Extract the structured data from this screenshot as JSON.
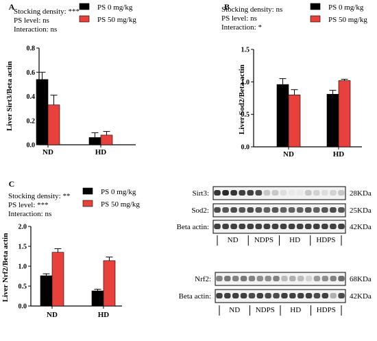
{
  "colors": {
    "ps0": "#000000",
    "ps50": "#e8403a",
    "axis": "#000000",
    "blot_bg": "#f2f2f2"
  },
  "chart_data": [
    {
      "type": "bar",
      "panel_label": "A",
      "stats": [
        "Stocking density: ***",
        "PS level: ns",
        "Interaction: ns"
      ],
      "legend": [
        {
          "name": "PS 0 mg/kg",
          "color": "#000000"
        },
        {
          "name": "PS 50 mg/kg",
          "color": "#e8403a"
        }
      ],
      "categories": [
        "ND",
        "HD"
      ],
      "series": [
        {
          "name": "PS 0 mg/kg",
          "values": [
            0.54,
            0.06
          ],
          "errors": [
            0.06,
            0.04
          ]
        },
        {
          "name": "PS 50 mg/kg",
          "values": [
            0.33,
            0.08
          ],
          "errors": [
            0.08,
            0.03
          ]
        }
      ],
      "ylabel": "Liver Sirt3/Beta actin",
      "ylim": [
        0,
        0.8
      ],
      "yticks": [
        0.0,
        0.2,
        0.4,
        0.6,
        0.8
      ],
      "ytick_labels": [
        "0.0",
        "0.2",
        "0.4",
        "0.6",
        "0.8"
      ]
    },
    {
      "type": "bar",
      "panel_label": "B",
      "stats": [
        "Stocking density: ns",
        "PS level: ns",
        "Interaction: *"
      ],
      "legend": [
        {
          "name": "PS 0 mg/kg",
          "color": "#000000"
        },
        {
          "name": "PS 50 mg/kg",
          "color": "#e8403a"
        }
      ],
      "categories": [
        "ND",
        "HD"
      ],
      "series": [
        {
          "name": "PS 0 mg/kg",
          "values": [
            0.96,
            0.81
          ],
          "errors": [
            0.09,
            0.06
          ]
        },
        {
          "name": "PS 50 mg/kg",
          "values": [
            0.8,
            1.02
          ],
          "errors": [
            0.08,
            0.02
          ]
        }
      ],
      "ylabel": "Liver Sod2/Beta actin",
      "ylim": [
        0,
        1.5
      ],
      "yticks": [
        0.0,
        0.5,
        1.0,
        1.5
      ],
      "ytick_labels": [
        "0.0",
        "0.5",
        "1.0",
        "1.5"
      ]
    },
    {
      "type": "bar",
      "panel_label": "C",
      "stats": [
        "Stocking density: **",
        "PS level: ***",
        "Interaction: ns"
      ],
      "legend": [
        {
          "name": "PS 0 mg/kg",
          "color": "#000000"
        },
        {
          "name": "PS 50 mg/kg",
          "color": "#e8403a"
        }
      ],
      "categories": [
        "ND",
        "HD"
      ],
      "series": [
        {
          "name": "PS 0 mg/kg",
          "values": [
            0.76,
            0.38
          ],
          "errors": [
            0.05,
            0.04
          ]
        },
        {
          "name": "PS 50 mg/kg",
          "values": [
            1.35,
            1.14
          ],
          "errors": [
            0.09,
            0.09
          ]
        }
      ],
      "ylabel": "Liver Nrf2/Beta actin",
      "ylim": [
        0,
        2.0
      ],
      "yticks": [
        0.0,
        0.5,
        1.0,
        1.5,
        2.0
      ],
      "ytick_labels": [
        "0.0",
        "0.5",
        "1.0",
        "1.5",
        "2.0"
      ]
    }
  ],
  "blots": [
    {
      "rows": [
        {
          "label": "Sirt3:",
          "size": "28KDa",
          "intensities": [
            0.9,
            0.95,
            0.9,
            0.85,
            0.85,
            0.8,
            0.25,
            0.25,
            0.15,
            0.1,
            0.1,
            0.25,
            0.2,
            0.15,
            0.2,
            0.25
          ]
        },
        {
          "label": "Sod2:",
          "size": "25KDa",
          "intensities": [
            0.8,
            0.75,
            0.8,
            0.75,
            0.8,
            0.75,
            0.7,
            0.75,
            0.7,
            0.7,
            0.7,
            0.75,
            0.7,
            0.75,
            0.8,
            0.75
          ]
        },
        {
          "label": "Beta actin:",
          "size": "42KDa",
          "intensities": [
            0.85,
            0.85,
            0.85,
            0.85,
            0.85,
            0.85,
            0.85,
            0.85,
            0.85,
            0.85,
            0.85,
            0.85,
            0.85,
            0.85,
            0.85,
            0.85
          ]
        }
      ],
      "groups": [
        "ND",
        "NDPS",
        "HD",
        "HDPS"
      ]
    },
    {
      "rows": [
        {
          "label": "Nrf2:",
          "size": "68KDa",
          "intensities": [
            0.55,
            0.6,
            0.55,
            0.6,
            0.55,
            0.5,
            0.5,
            0.55,
            0.3,
            0.35,
            0.3,
            0.2,
            0.45,
            0.5,
            0.55,
            0.65
          ]
        },
        {
          "label": "Beta actin:",
          "size": "42KDa",
          "intensities": [
            0.85,
            0.85,
            0.85,
            0.85,
            0.8,
            0.85,
            0.8,
            0.8,
            0.85,
            0.85,
            0.85,
            0.85,
            0.8,
            0.85,
            0.35,
            0.8
          ]
        }
      ],
      "groups": [
        "ND",
        "NDPS",
        "HD",
        "HDPS"
      ]
    }
  ]
}
